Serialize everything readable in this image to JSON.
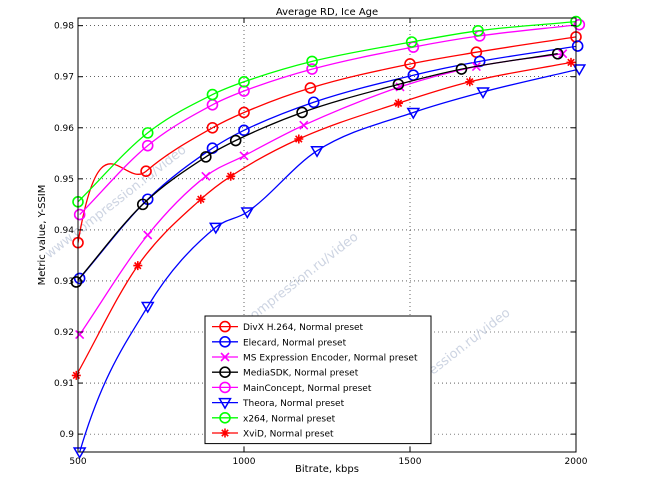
{
  "chart_data": {
    "type": "line",
    "title": "Average RD, Ice Age",
    "xlabel": "Bitrate, kbps",
    "ylabel": "Metric value, Y-SSIM",
    "xlim": [
      500,
      2000
    ],
    "ylim": [
      0.8965,
      0.9815
    ],
    "xticks": [
      500,
      1000,
      1500,
      2000
    ],
    "yticks": [
      0.9,
      0.91,
      0.92,
      0.93,
      0.94,
      0.95,
      0.96,
      0.97,
      0.98
    ],
    "ytick_labels": [
      "0.9",
      "0.91",
      "0.92",
      "0.93",
      "0.94",
      "0.95",
      "0.96",
      "0.97",
      "0.98"
    ],
    "grid": "dotted",
    "legend_position": "lower-center",
    "watermark": "www.compression.ru/video",
    "series": [
      {
        "name": "DivX H.264, Normal preset",
        "color": "#ff0000",
        "marker": "circle",
        "x": [
          500,
          705,
          905,
          1000,
          1200,
          1500,
          1700,
          2000
        ],
        "y": [
          0.9375,
          0.9515,
          0.96,
          0.963,
          0.9678,
          0.9725,
          0.9748,
          0.9778
        ],
        "curve_x": [
          495,
          500,
          705,
          905,
          1000,
          1200,
          1500,
          1700,
          2000
        ],
        "curve_y": [
          0.934,
          0.9375,
          0.9515,
          0.96,
          0.963,
          0.9678,
          0.9725,
          0.9748,
          0.9778
        ]
      },
      {
        "name": "Elecard, Normal preset",
        "color": "#0000ff",
        "marker": "circle",
        "x": [
          505,
          710,
          905,
          1000,
          1210,
          1510,
          1710,
          2005
        ],
        "y": [
          0.9305,
          0.946,
          0.956,
          0.9595,
          0.965,
          0.9703,
          0.973,
          0.976
        ]
      },
      {
        "name": "MS Expression Encoder, Normal preset",
        "color": "#ff00ff",
        "marker": "x",
        "x": [
          505,
          710,
          885,
          1000,
          1180,
          1470,
          1700,
          1960
        ],
        "y": [
          0.9195,
          0.939,
          0.9505,
          0.9545,
          0.9605,
          0.968,
          0.972,
          0.9745
        ]
      },
      {
        "name": "MediaSDK, Normal preset",
        "color": "#000000",
        "marker": "circle",
        "x": [
          495,
          695,
          885,
          975,
          1175,
          1465,
          1655,
          1945
        ],
        "y": [
          0.9298,
          0.945,
          0.9543,
          0.9575,
          0.963,
          0.9685,
          0.9715,
          0.9745
        ]
      },
      {
        "name": "MainConcept, Normal preset",
        "color": "#ff00ff",
        "marker": "circle",
        "x": [
          505,
          710,
          905,
          1000,
          1205,
          1510,
          1710,
          2010
        ],
        "y": [
          0.943,
          0.9565,
          0.9645,
          0.9672,
          0.9715,
          0.9758,
          0.978,
          0.9802
        ]
      },
      {
        "name": "Theora, Normal preset",
        "color": "#0000ff",
        "marker": "triangle-down",
        "x": [
          505,
          710,
          915,
          1010,
          1220,
          1510,
          1720,
          2010
        ],
        "y": [
          0.8965,
          0.925,
          0.9405,
          0.9435,
          0.9555,
          0.963,
          0.967,
          0.9715
        ],
        "curve_x": [
          495,
          505,
          710,
          915,
          1010,
          1220,
          1510,
          1720,
          2010
        ],
        "curve_y": [
          0.8935,
          0.8965,
          0.925,
          0.9405,
          0.9435,
          0.9555,
          0.963,
          0.967,
          0.9715
        ]
      },
      {
        "name": "x264, Normal preset",
        "color": "#00ff00",
        "marker": "circle",
        "x": [
          500,
          710,
          905,
          1000,
          1205,
          1505,
          1705,
          2000
        ],
        "y": [
          0.9455,
          0.959,
          0.9665,
          0.969,
          0.973,
          0.9768,
          0.979,
          0.9808
        ]
      },
      {
        "name": "XviD, Normal preset",
        "color": "#ff0000",
        "marker": "star",
        "x": [
          495,
          680,
          870,
          960,
          1165,
          1465,
          1680,
          1985
        ],
        "y": [
          0.9115,
          0.933,
          0.946,
          0.9505,
          0.9578,
          0.9648,
          0.969,
          0.9728
        ]
      }
    ]
  }
}
